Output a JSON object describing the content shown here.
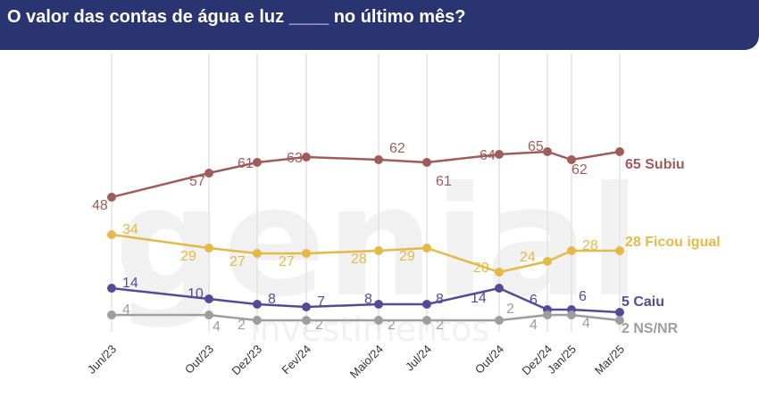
{
  "header": {
    "title": "O valor das contas de água e luz ____ no último mês?",
    "background": "#2a3470"
  },
  "watermark": {
    "brand": "genial",
    "subtitle": "investimentos"
  },
  "chart_data": {
    "type": "line",
    "title": "O valor das contas de água e luz ____ no último mês?",
    "xlabel": "",
    "ylabel": "",
    "ylim": [
      0,
      70
    ],
    "grid": "vertical lines at each date",
    "x": [
      "Jun/23",
      "Out/23",
      "Dez/23",
      "Fev/24",
      "Maio/24",
      "Jul/24",
      "Out/24",
      "Dez/24",
      "Jan/25",
      "Mar/25"
    ],
    "x_dates": [
      "2023-06",
      "2023-10",
      "2023-12",
      "2024-02",
      "2024-05",
      "2024-07",
      "2024-10",
      "2024-12",
      "2025-01",
      "2025-03"
    ],
    "series": [
      {
        "name": "Subiu",
        "color": "#9e5d5a",
        "end_label": "65 Subiu",
        "values": [
          48,
          57,
          61,
          63,
          62,
          61,
          64,
          65,
          62,
          65
        ]
      },
      {
        "name": "Ficou igual",
        "color": "#e3b94a",
        "end_label": "28 Ficou igual",
        "values": [
          34,
          29,
          27,
          27,
          28,
          29,
          20,
          24,
          28,
          28
        ]
      },
      {
        "name": "Caiu",
        "color": "#544b96",
        "end_label": "5 Caiu",
        "values": [
          14,
          10,
          8,
          7,
          8,
          8,
          14,
          6,
          6,
          5
        ]
      },
      {
        "name": "NS/NR",
        "color": "#9e9e9e",
        "end_label": "2 NS/NR",
        "values": [
          4,
          4,
          2,
          2,
          2,
          2,
          2,
          4,
          4,
          2
        ]
      }
    ]
  }
}
